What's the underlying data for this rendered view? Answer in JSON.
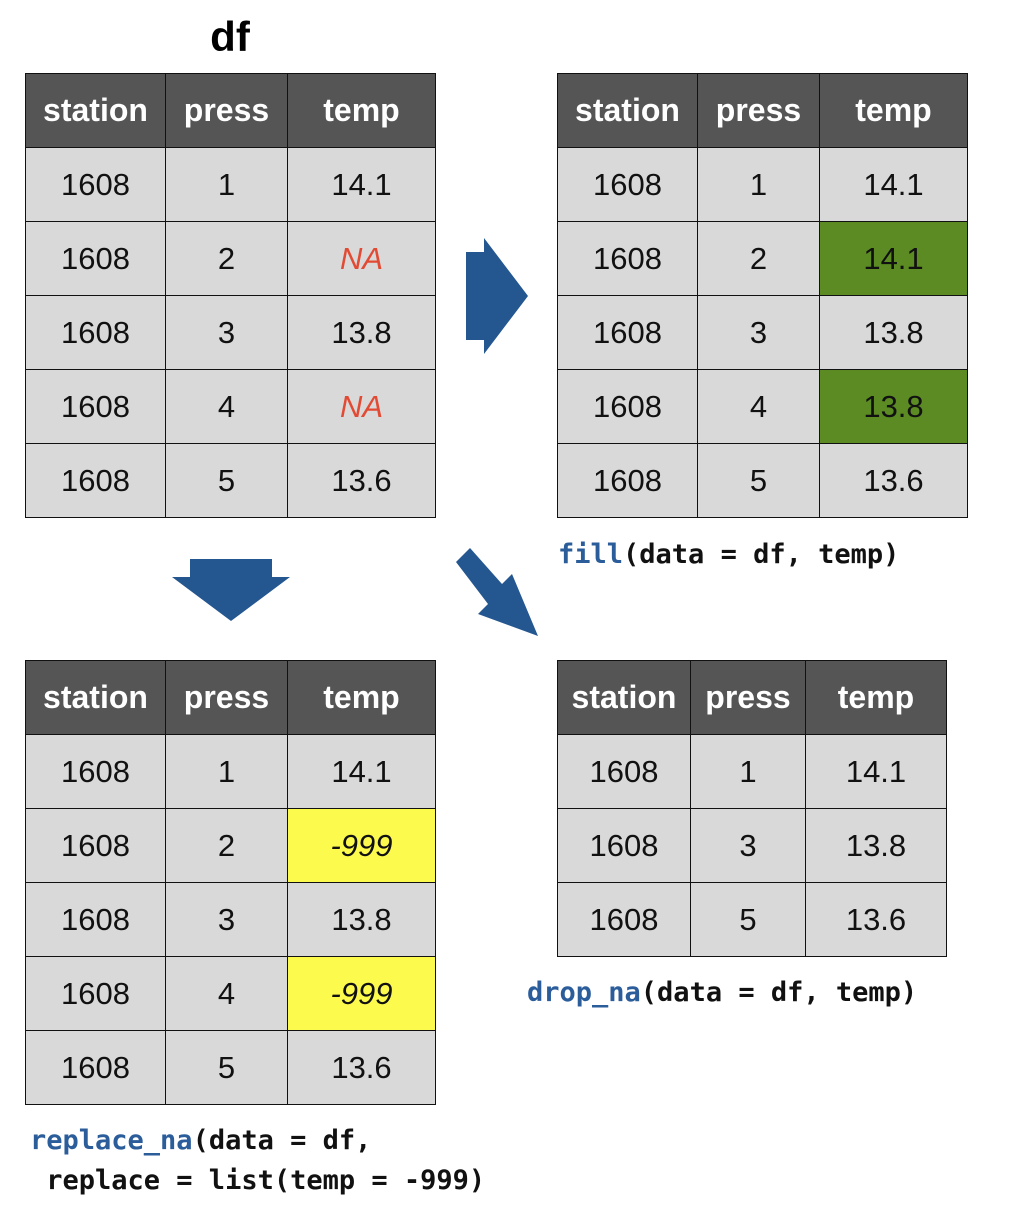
{
  "title": "df",
  "headers": [
    "station",
    "press",
    "temp"
  ],
  "original": [
    [
      "1608",
      "1",
      "14.1"
    ],
    [
      "1608",
      "2",
      "NA"
    ],
    [
      "1608",
      "3",
      "13.8"
    ],
    [
      "1608",
      "4",
      "NA"
    ],
    [
      "1608",
      "5",
      "13.6"
    ]
  ],
  "filled": [
    [
      "1608",
      "1",
      "14.1"
    ],
    [
      "1608",
      "2",
      "14.1"
    ],
    [
      "1608",
      "3",
      "13.8"
    ],
    [
      "1608",
      "4",
      "13.8"
    ],
    [
      "1608",
      "5",
      "13.6"
    ]
  ],
  "replaced": [
    [
      "1608",
      "1",
      "14.1"
    ],
    [
      "1608",
      "2",
      "-999"
    ],
    [
      "1608",
      "3",
      "13.8"
    ],
    [
      "1608",
      "4",
      "-999"
    ],
    [
      "1608",
      "5",
      "13.6"
    ]
  ],
  "dropped": [
    [
      "1608",
      "1",
      "14.1"
    ],
    [
      "1608",
      "3",
      "13.8"
    ],
    [
      "1608",
      "5",
      "13.6"
    ]
  ],
  "code": {
    "fill_fn": "fill",
    "fill_args": "(data = df, temp)",
    "drop_fn": "drop_na",
    "drop_args": "(data = df, temp)",
    "replace_fn": "replace_na",
    "replace_args_line1": "(data = df,",
    "replace_line2": " replace = list(temp = -999)"
  },
  "colors": {
    "header_bg": "#555555",
    "cell_bg": "#d9d9d9",
    "na_text": "#e24a33",
    "fill_highlight": "#5b8b22",
    "replace_highlight": "#fdfa4e",
    "function_name": "#2b5d9b",
    "arrow": "#245690"
  }
}
